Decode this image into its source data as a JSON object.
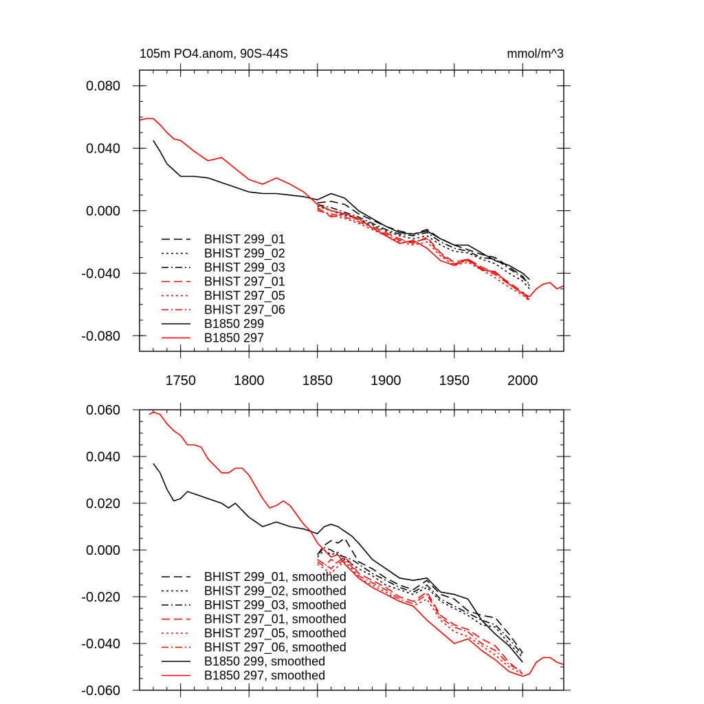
{
  "chart_data": [
    {
      "type": "line",
      "title": "105m PO4.anom, 90S-44S",
      "units": "mmol/m^3",
      "xlim": [
        1720,
        2030
      ],
      "ylim": [
        -0.09,
        0.09
      ],
      "yticks": [
        0.08,
        0.04,
        0.0,
        -0.04,
        -0.08
      ],
      "ytick_labels": [
        "0.080",
        "0.040",
        "0.000",
        "-0.040",
        "-0.080"
      ],
      "xticks": [
        1750,
        1800,
        1850,
        1900,
        1950,
        2000
      ],
      "xtick_labels": [
        "1750",
        "1800",
        "1850",
        "1900",
        "1950",
        "2000"
      ],
      "legend": "bottom-left",
      "series": [
        {
          "name": "BHIST 299_01",
          "color": "#000000",
          "dash": "dash",
          "x": [
            1850,
            1860,
            1870,
            1880,
            1890,
            1900,
            1910,
            1920,
            1930,
            1940,
            1950,
            1960,
            1970,
            1980,
            1990,
            2000,
            2005
          ],
          "values": [
            0.005,
            0.006,
            0.004,
            -0.002,
            -0.006,
            -0.01,
            -0.013,
            -0.015,
            -0.012,
            -0.018,
            -0.022,
            -0.025,
            -0.028,
            -0.03,
            -0.036,
            -0.042,
            -0.048
          ]
        },
        {
          "name": "BHIST 299_02",
          "color": "#000000",
          "dash": "dot",
          "x": [
            1850,
            1860,
            1870,
            1880,
            1890,
            1900,
            1910,
            1920,
            1930,
            1940,
            1950,
            1960,
            1970,
            1980,
            1990,
            2000,
            2005
          ],
          "values": [
            0.003,
            0.0,
            -0.003,
            -0.005,
            -0.009,
            -0.013,
            -0.016,
            -0.018,
            -0.016,
            -0.022,
            -0.026,
            -0.027,
            -0.031,
            -0.034,
            -0.04,
            -0.045,
            -0.05
          ]
        },
        {
          "name": "BHIST 299_03",
          "color": "#000000",
          "dash": "dashdot",
          "x": [
            1850,
            1860,
            1870,
            1880,
            1890,
            1900,
            1910,
            1920,
            1930,
            1940,
            1950,
            1960,
            1970,
            1980,
            1990,
            2000,
            2005
          ],
          "values": [
            0.004,
            0.002,
            -0.001,
            -0.004,
            -0.008,
            -0.012,
            -0.015,
            -0.016,
            -0.014,
            -0.02,
            -0.024,
            -0.026,
            -0.03,
            -0.031,
            -0.037,
            -0.043,
            -0.047
          ]
        },
        {
          "name": "BHIST 297_01",
          "color": "#ff0000",
          "dash": "dash",
          "x": [
            1850,
            1860,
            1870,
            1880,
            1890,
            1900,
            1910,
            1920,
            1930,
            1940,
            1950,
            1960,
            1970,
            1980,
            1990,
            2000,
            2005
          ],
          "values": [
            0.002,
            -0.004,
            -0.002,
            -0.006,
            -0.01,
            -0.014,
            -0.018,
            -0.021,
            -0.017,
            -0.027,
            -0.033,
            -0.031,
            -0.036,
            -0.04,
            -0.046,
            -0.052,
            -0.057
          ]
        },
        {
          "name": "BHIST 297_05",
          "color": "#ff0000",
          "dash": "dot",
          "x": [
            1850,
            1860,
            1870,
            1880,
            1890,
            1900,
            1910,
            1920,
            1930,
            1940,
            1950,
            1960,
            1970,
            1980,
            1990,
            2000,
            2005
          ],
          "values": [
            0.001,
            -0.003,
            -0.005,
            -0.008,
            -0.012,
            -0.016,
            -0.02,
            -0.022,
            -0.02,
            -0.029,
            -0.035,
            -0.033,
            -0.038,
            -0.043,
            -0.049,
            -0.054,
            -0.058
          ]
        },
        {
          "name": "BHIST 297_06",
          "color": "#ff0000",
          "dash": "dashdot",
          "x": [
            1850,
            1860,
            1870,
            1880,
            1890,
            1900,
            1910,
            1920,
            1930,
            1940,
            1950,
            1960,
            1970,
            1980,
            1990,
            2000,
            2005
          ],
          "values": [
            0.0,
            -0.002,
            -0.004,
            -0.007,
            -0.011,
            -0.015,
            -0.019,
            -0.02,
            -0.018,
            -0.028,
            -0.034,
            -0.032,
            -0.037,
            -0.041,
            -0.047,
            -0.053,
            -0.057
          ]
        },
        {
          "name": "B1850 299",
          "color": "#000000",
          "dash": "solid",
          "x": [
            1730,
            1735,
            1740,
            1745,
            1750,
            1760,
            1770,
            1780,
            1790,
            1800,
            1810,
            1820,
            1830,
            1840,
            1850,
            1860,
            1870,
            1880,
            1890,
            1900,
            1910,
            1920,
            1930,
            1940,
            1950,
            1960,
            1970,
            1980,
            1990,
            2000,
            2005
          ],
          "values": [
            0.045,
            0.038,
            0.03,
            0.026,
            0.022,
            0.022,
            0.021,
            0.018,
            0.015,
            0.012,
            0.011,
            0.011,
            0.01,
            0.009,
            0.007,
            0.011,
            0.008,
            0.0,
            -0.005,
            -0.01,
            -0.014,
            -0.015,
            -0.013,
            -0.018,
            -0.022,
            -0.022,
            -0.027,
            -0.032,
            -0.035,
            -0.04,
            -0.044
          ]
        },
        {
          "name": "B1850 297",
          "color": "#ff0000",
          "dash": "solid",
          "x": [
            1720,
            1725,
            1730,
            1735,
            1740,
            1745,
            1750,
            1760,
            1770,
            1780,
            1790,
            1800,
            1810,
            1820,
            1830,
            1840,
            1850,
            1860,
            1870,
            1880,
            1890,
            1900,
            1910,
            1920,
            1930,
            1940,
            1950,
            1960,
            1970,
            1980,
            1990,
            2000,
            2005,
            2010,
            2015,
            2020,
            2025,
            2030
          ],
          "values": [
            0.058,
            0.059,
            0.059,
            0.055,
            0.05,
            0.046,
            0.045,
            0.038,
            0.032,
            0.034,
            0.027,
            0.02,
            0.017,
            0.021,
            0.017,
            0.012,
            0.004,
            0.0,
            -0.002,
            -0.005,
            -0.011,
            -0.016,
            -0.021,
            -0.019,
            -0.024,
            -0.032,
            -0.035,
            -0.031,
            -0.038,
            -0.039,
            -0.047,
            -0.053,
            -0.055,
            -0.05,
            -0.047,
            -0.046,
            -0.05,
            -0.048
          ]
        }
      ]
    },
    {
      "type": "line",
      "title": "",
      "xlim": [
        1720,
        2030
      ],
      "ylim": [
        -0.06,
        0.06
      ],
      "yticks": [
        0.06,
        0.04,
        0.02,
        0.0,
        -0.02,
        -0.04,
        -0.06
      ],
      "ytick_labels": [
        "0.060",
        "0.040",
        "0.020",
        "0.000",
        "-0.020",
        "-0.040",
        "-0.060"
      ],
      "xticks": [
        1750,
        1800,
        1850,
        1900,
        1950,
        2000
      ],
      "legend": "bottom-left",
      "series": [
        {
          "name": "BHIST 299_01, smoothed",
          "color": "#000000",
          "dash": "dash",
          "x": [
            1850,
            1855,
            1860,
            1865,
            1870,
            1875,
            1880,
            1890,
            1900,
            1910,
            1920,
            1930,
            1940,
            1950,
            1960,
            1970,
            1980,
            1990,
            2000
          ],
          "values": [
            -0.002,
            0.002,
            0.004,
            0.003,
            0.005,
            0.0,
            -0.005,
            -0.008,
            -0.012,
            -0.015,
            -0.017,
            -0.013,
            -0.019,
            -0.021,
            -0.026,
            -0.028,
            -0.029,
            -0.036,
            -0.044
          ]
        },
        {
          "name": "BHIST 299_02, smoothed",
          "color": "#000000",
          "dash": "dot",
          "x": [
            1850,
            1855,
            1860,
            1865,
            1870,
            1875,
            1880,
            1890,
            1900,
            1910,
            1920,
            1930,
            1940,
            1950,
            1960,
            1970,
            1980,
            1990,
            2000
          ],
          "values": [
            -0.003,
            0.0,
            -0.002,
            -0.001,
            -0.004,
            -0.006,
            -0.008,
            -0.011,
            -0.015,
            -0.017,
            -0.019,
            -0.016,
            -0.022,
            -0.025,
            -0.028,
            -0.032,
            -0.033,
            -0.04,
            -0.046
          ]
        },
        {
          "name": "BHIST 299_03, smoothed",
          "color": "#000000",
          "dash": "dashdot",
          "x": [
            1850,
            1855,
            1860,
            1865,
            1870,
            1875,
            1880,
            1890,
            1900,
            1910,
            1920,
            1930,
            1940,
            1950,
            1960,
            1970,
            1980,
            1990,
            2000
          ],
          "values": [
            -0.002,
            0.001,
            0.0,
            -0.002,
            -0.003,
            -0.004,
            -0.006,
            -0.01,
            -0.013,
            -0.016,
            -0.018,
            -0.015,
            -0.021,
            -0.024,
            -0.027,
            -0.03,
            -0.032,
            -0.038,
            -0.045
          ]
        },
        {
          "name": "BHIST 297_01, smoothed",
          "color": "#ff0000",
          "dash": "dash",
          "x": [
            1850,
            1855,
            1860,
            1865,
            1870,
            1875,
            1880,
            1890,
            1900,
            1910,
            1920,
            1930,
            1940,
            1950,
            1960,
            1970,
            1980,
            1990,
            2000
          ],
          "values": [
            -0.004,
            -0.006,
            -0.008,
            -0.005,
            -0.003,
            -0.006,
            -0.01,
            -0.013,
            -0.016,
            -0.02,
            -0.022,
            -0.018,
            -0.028,
            -0.032,
            -0.034,
            -0.038,
            -0.041,
            -0.048,
            -0.053
          ]
        },
        {
          "name": "BHIST 297_05, smoothed",
          "color": "#ff0000",
          "dash": "dot",
          "x": [
            1850,
            1855,
            1860,
            1865,
            1870,
            1875,
            1880,
            1890,
            1900,
            1910,
            1920,
            1930,
            1940,
            1950,
            1960,
            1970,
            1980,
            1990,
            2000
          ],
          "values": [
            -0.006,
            -0.008,
            -0.01,
            -0.007,
            -0.005,
            -0.008,
            -0.012,
            -0.015,
            -0.018,
            -0.022,
            -0.024,
            -0.021,
            -0.03,
            -0.035,
            -0.037,
            -0.041,
            -0.045,
            -0.05,
            -0.053
          ]
        },
        {
          "name": "BHIST 297_06, smoothed",
          "color": "#ff0000",
          "dash": "dashdot",
          "x": [
            1850,
            1855,
            1860,
            1865,
            1870,
            1875,
            1880,
            1890,
            1900,
            1910,
            1920,
            1930,
            1940,
            1950,
            1960,
            1970,
            1980,
            1990,
            2000
          ],
          "values": [
            -0.005,
            -0.007,
            -0.004,
            -0.006,
            -0.004,
            -0.007,
            -0.011,
            -0.014,
            -0.017,
            -0.021,
            -0.023,
            -0.019,
            -0.029,
            -0.033,
            -0.035,
            -0.04,
            -0.043,
            -0.049,
            -0.052
          ]
        },
        {
          "name": "B1850 299, smoothed",
          "color": "#000000",
          "dash": "solid",
          "x": [
            1730,
            1735,
            1740,
            1745,
            1750,
            1755,
            1760,
            1765,
            1770,
            1780,
            1785,
            1790,
            1800,
            1810,
            1820,
            1830,
            1840,
            1850,
            1855,
            1860,
            1865,
            1870,
            1875,
            1880,
            1890,
            1900,
            1910,
            1920,
            1930,
            1940,
            1950,
            1960,
            1970,
            1980,
            1990,
            2000
          ],
          "values": [
            0.037,
            0.033,
            0.026,
            0.021,
            0.022,
            0.025,
            0.024,
            0.023,
            0.022,
            0.02,
            0.018,
            0.02,
            0.014,
            0.01,
            0.012,
            0.01,
            0.009,
            0.007,
            0.01,
            0.011,
            0.01,
            0.008,
            0.006,
            0.003,
            -0.004,
            -0.008,
            -0.012,
            -0.013,
            -0.012,
            -0.018,
            -0.019,
            -0.021,
            -0.03,
            -0.036,
            -0.041,
            -0.048
          ]
        },
        {
          "name": "B1850 297, smoothed",
          "color": "#ff0000",
          "dash": "solid",
          "x": [
            1727,
            1730,
            1735,
            1740,
            1745,
            1750,
            1755,
            1760,
            1765,
            1770,
            1780,
            1785,
            1790,
            1795,
            1800,
            1810,
            1815,
            1820,
            1825,
            1830,
            1840,
            1845,
            1850,
            1860,
            1865,
            1870,
            1880,
            1890,
            1900,
            1910,
            1920,
            1930,
            1940,
            1950,
            1960,
            1970,
            1980,
            1990,
            2000,
            2005,
            2010,
            2015,
            2020,
            2025,
            2030
          ],
          "values": [
            0.058,
            0.059,
            0.058,
            0.054,
            0.051,
            0.049,
            0.045,
            0.045,
            0.044,
            0.039,
            0.033,
            0.033,
            0.035,
            0.035,
            0.032,
            0.022,
            0.018,
            0.019,
            0.021,
            0.019,
            0.011,
            0.008,
            0.003,
            -0.003,
            -0.002,
            -0.006,
            -0.012,
            -0.016,
            -0.019,
            -0.022,
            -0.024,
            -0.03,
            -0.035,
            -0.04,
            -0.038,
            -0.043,
            -0.047,
            -0.052,
            -0.054,
            -0.053,
            -0.048,
            -0.046,
            -0.046,
            -0.048,
            -0.049
          ]
        }
      ]
    }
  ]
}
